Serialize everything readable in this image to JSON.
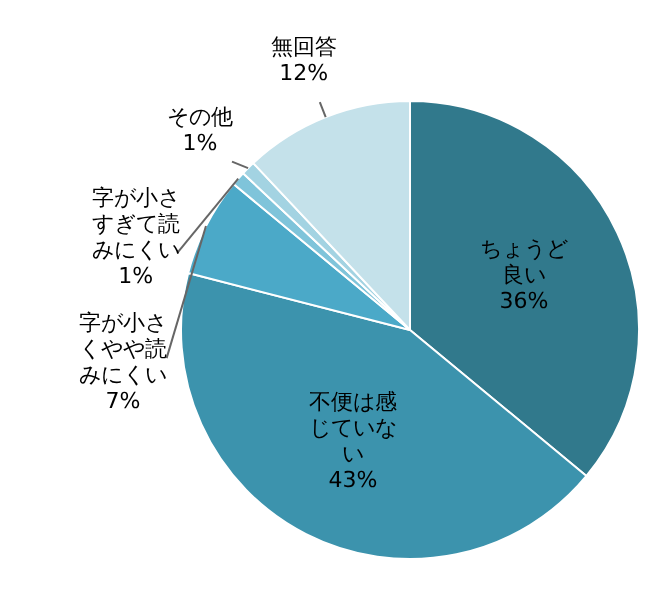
{
  "chart_data": {
    "type": "pie",
    "categories": [
      "ちょうど良い",
      "不便は感じていない",
      "字が小さくやや読みにくい",
      "字が小さすぎて読みにくい",
      "その他",
      "無回答"
    ],
    "values": [
      36,
      43,
      7,
      1,
      1,
      12
    ],
    "value_labels": [
      "36%",
      "43%",
      "7%",
      "1%",
      "1%",
      "12%"
    ],
    "colors": [
      "#31798c",
      "#3c93ad",
      "#4ba9c8",
      "#7fc4da",
      "#a3d3e2",
      "#c4e1ea"
    ],
    "legend": false
  }
}
